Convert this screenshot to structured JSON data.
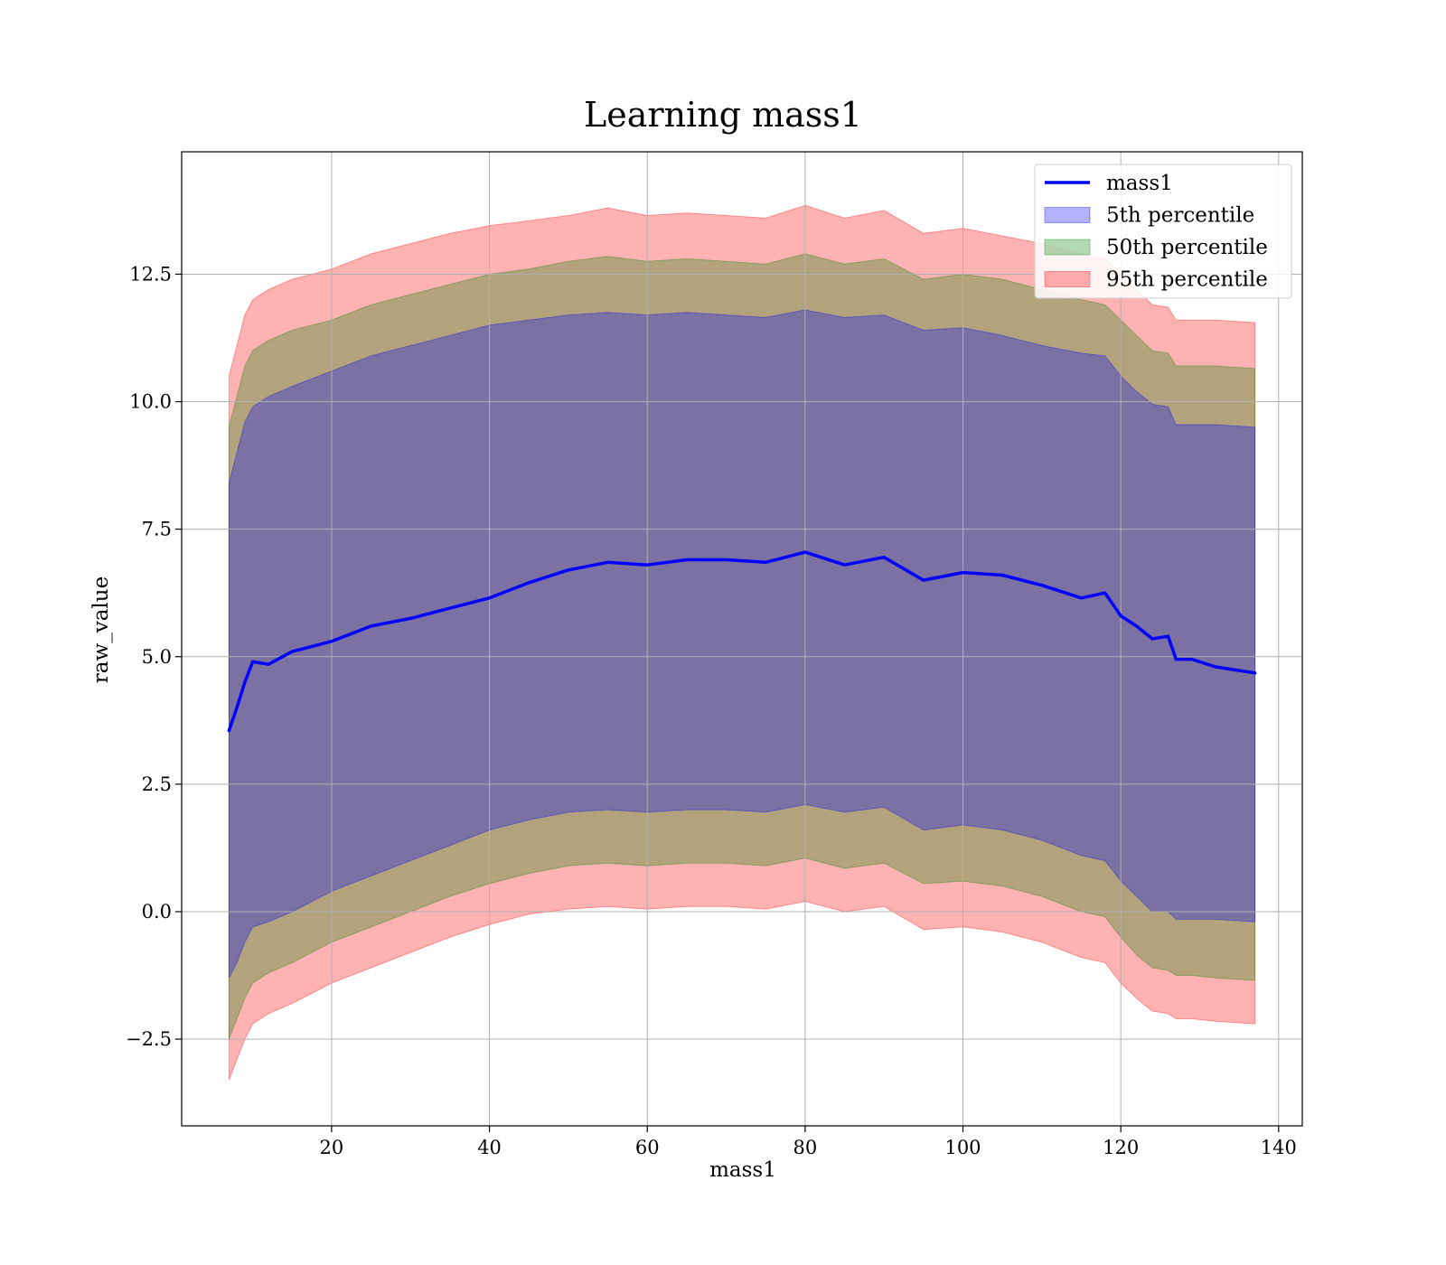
{
  "chart_data": {
    "type": "line",
    "title": "Learning mass1",
    "xlabel": "mass1",
    "ylabel": "raw_value",
    "xlim": [
      1,
      143
    ],
    "ylim": [
      -4.2,
      14.9
    ],
    "xticks": [
      20,
      40,
      60,
      80,
      100,
      120,
      140
    ],
    "xtick_labels": [
      "20",
      "40",
      "60",
      "80",
      "100",
      "120",
      "140"
    ],
    "yticks": [
      -2.5,
      0.0,
      2.5,
      5.0,
      7.5,
      10.0,
      12.5
    ],
    "ytick_labels": [
      "−2.5",
      "0.0",
      "2.5",
      "5.0",
      "7.5",
      "10.0",
      "12.5"
    ],
    "grid": true,
    "legend_position": "upper-right",
    "x": [
      7,
      8,
      9,
      10,
      12,
      15,
      20,
      25,
      30,
      35,
      40,
      45,
      50,
      55,
      60,
      65,
      70,
      75,
      80,
      85,
      90,
      95,
      100,
      105,
      110,
      115,
      118,
      120,
      122,
      124,
      126,
      127,
      129,
      132,
      137
    ],
    "series": [
      {
        "name": "mass1",
        "kind": "line",
        "color": "#0000ff",
        "values": [
          3.55,
          4.0,
          4.5,
          4.9,
          4.85,
          5.1,
          5.3,
          5.6,
          5.75,
          5.95,
          6.15,
          6.45,
          6.7,
          6.85,
          6.8,
          6.9,
          6.9,
          6.85,
          7.05,
          6.8,
          6.95,
          6.5,
          6.65,
          6.6,
          6.4,
          6.15,
          6.25,
          5.8,
          5.6,
          5.35,
          5.4,
          4.95,
          4.95,
          4.8,
          4.68
        ]
      },
      {
        "name": "5th percentile",
        "kind": "band",
        "color": "#0000ff",
        "upper": [
          8.4,
          9.0,
          9.6,
          9.9,
          10.1,
          10.3,
          10.6,
          10.9,
          11.1,
          11.3,
          11.5,
          11.6,
          11.7,
          11.75,
          11.7,
          11.75,
          11.7,
          11.65,
          11.8,
          11.65,
          11.7,
          11.4,
          11.45,
          11.3,
          11.1,
          10.95,
          10.9,
          10.5,
          10.2,
          9.95,
          9.9,
          9.55,
          9.55,
          9.55,
          9.5
        ],
        "lower": [
          -1.3,
          -1.0,
          -0.6,
          -0.3,
          -0.2,
          0.0,
          0.4,
          0.7,
          1.0,
          1.3,
          1.6,
          1.8,
          1.95,
          2.0,
          1.95,
          2.0,
          2.0,
          1.95,
          2.1,
          1.95,
          2.05,
          1.6,
          1.7,
          1.6,
          1.4,
          1.1,
          1.0,
          0.6,
          0.3,
          0.0,
          0.0,
          -0.15,
          -0.15,
          -0.15,
          -0.2
        ]
      },
      {
        "name": "50th percentile",
        "kind": "band",
        "color": "#008000",
        "upper": [
          9.5,
          10.1,
          10.7,
          11.0,
          11.2,
          11.4,
          11.6,
          11.9,
          12.1,
          12.3,
          12.5,
          12.6,
          12.75,
          12.85,
          12.75,
          12.8,
          12.75,
          12.7,
          12.9,
          12.7,
          12.8,
          12.4,
          12.5,
          12.4,
          12.2,
          12.0,
          11.9,
          11.6,
          11.3,
          11.0,
          10.95,
          10.7,
          10.7,
          10.7,
          10.65
        ],
        "lower": [
          -2.5,
          -2.1,
          -1.7,
          -1.4,
          -1.2,
          -1.0,
          -0.6,
          -0.3,
          0.0,
          0.3,
          0.55,
          0.75,
          0.9,
          0.95,
          0.9,
          0.95,
          0.95,
          0.9,
          1.05,
          0.85,
          0.95,
          0.55,
          0.6,
          0.5,
          0.3,
          0.0,
          -0.1,
          -0.5,
          -0.85,
          -1.1,
          -1.15,
          -1.25,
          -1.25,
          -1.3,
          -1.35
        ]
      },
      {
        "name": "95th percentile",
        "kind": "band",
        "color": "#ff0000",
        "upper": [
          10.5,
          11.1,
          11.7,
          12.0,
          12.2,
          12.4,
          12.6,
          12.9,
          13.1,
          13.3,
          13.45,
          13.55,
          13.65,
          13.8,
          13.65,
          13.7,
          13.65,
          13.6,
          13.85,
          13.6,
          13.75,
          13.3,
          13.4,
          13.25,
          13.1,
          12.9,
          12.8,
          12.5,
          12.2,
          11.9,
          11.85,
          11.6,
          11.6,
          11.6,
          11.55
        ],
        "lower": [
          -3.3,
          -2.9,
          -2.5,
          -2.2,
          -2.0,
          -1.8,
          -1.4,
          -1.1,
          -0.8,
          -0.5,
          -0.25,
          -0.05,
          0.05,
          0.1,
          0.05,
          0.1,
          0.1,
          0.05,
          0.2,
          0.0,
          0.1,
          -0.35,
          -0.3,
          -0.4,
          -0.6,
          -0.9,
          -1.0,
          -1.4,
          -1.7,
          -1.95,
          -2.0,
          -2.1,
          -2.1,
          -2.15,
          -2.2
        ]
      }
    ]
  }
}
